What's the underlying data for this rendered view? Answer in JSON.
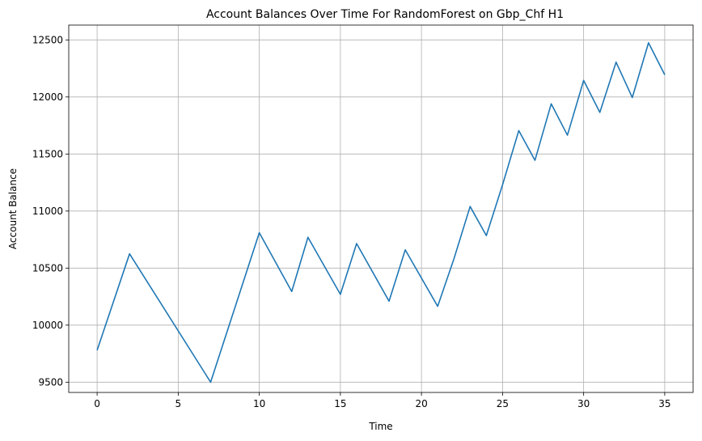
{
  "chart_data": {
    "type": "line",
    "title": "Account Balances Over Time For RandomForest on Gbp_Chf H1",
    "xlabel": "Time",
    "ylabel": "Account Balance",
    "xlim": [
      -1.75,
      36.75
    ],
    "ylim": [
      9410,
      12630
    ],
    "xticks": [
      0,
      5,
      10,
      15,
      20,
      25,
      30,
      35
    ],
    "yticks": [
      9500,
      10000,
      10500,
      11000,
      11500,
      12000,
      12500
    ],
    "grid": true,
    "line_color": "#1f77b4",
    "series": [
      {
        "x": [
          0,
          2,
          7,
          10,
          12,
          13,
          15,
          16,
          18,
          19,
          21,
          22,
          23,
          24,
          25,
          26,
          27,
          28,
          29,
          30,
          31,
          32,
          33,
          34,
          35
        ],
        "values": [
          9780,
          10625,
          9500,
          10810,
          10295,
          10770,
          10270,
          10715,
          10210,
          10660,
          10165,
          10580,
          11040,
          10785,
          11230,
          11705,
          11445,
          11940,
          11665,
          12145,
          11865,
          12305,
          11995,
          12475,
          12195
        ]
      }
    ]
  }
}
